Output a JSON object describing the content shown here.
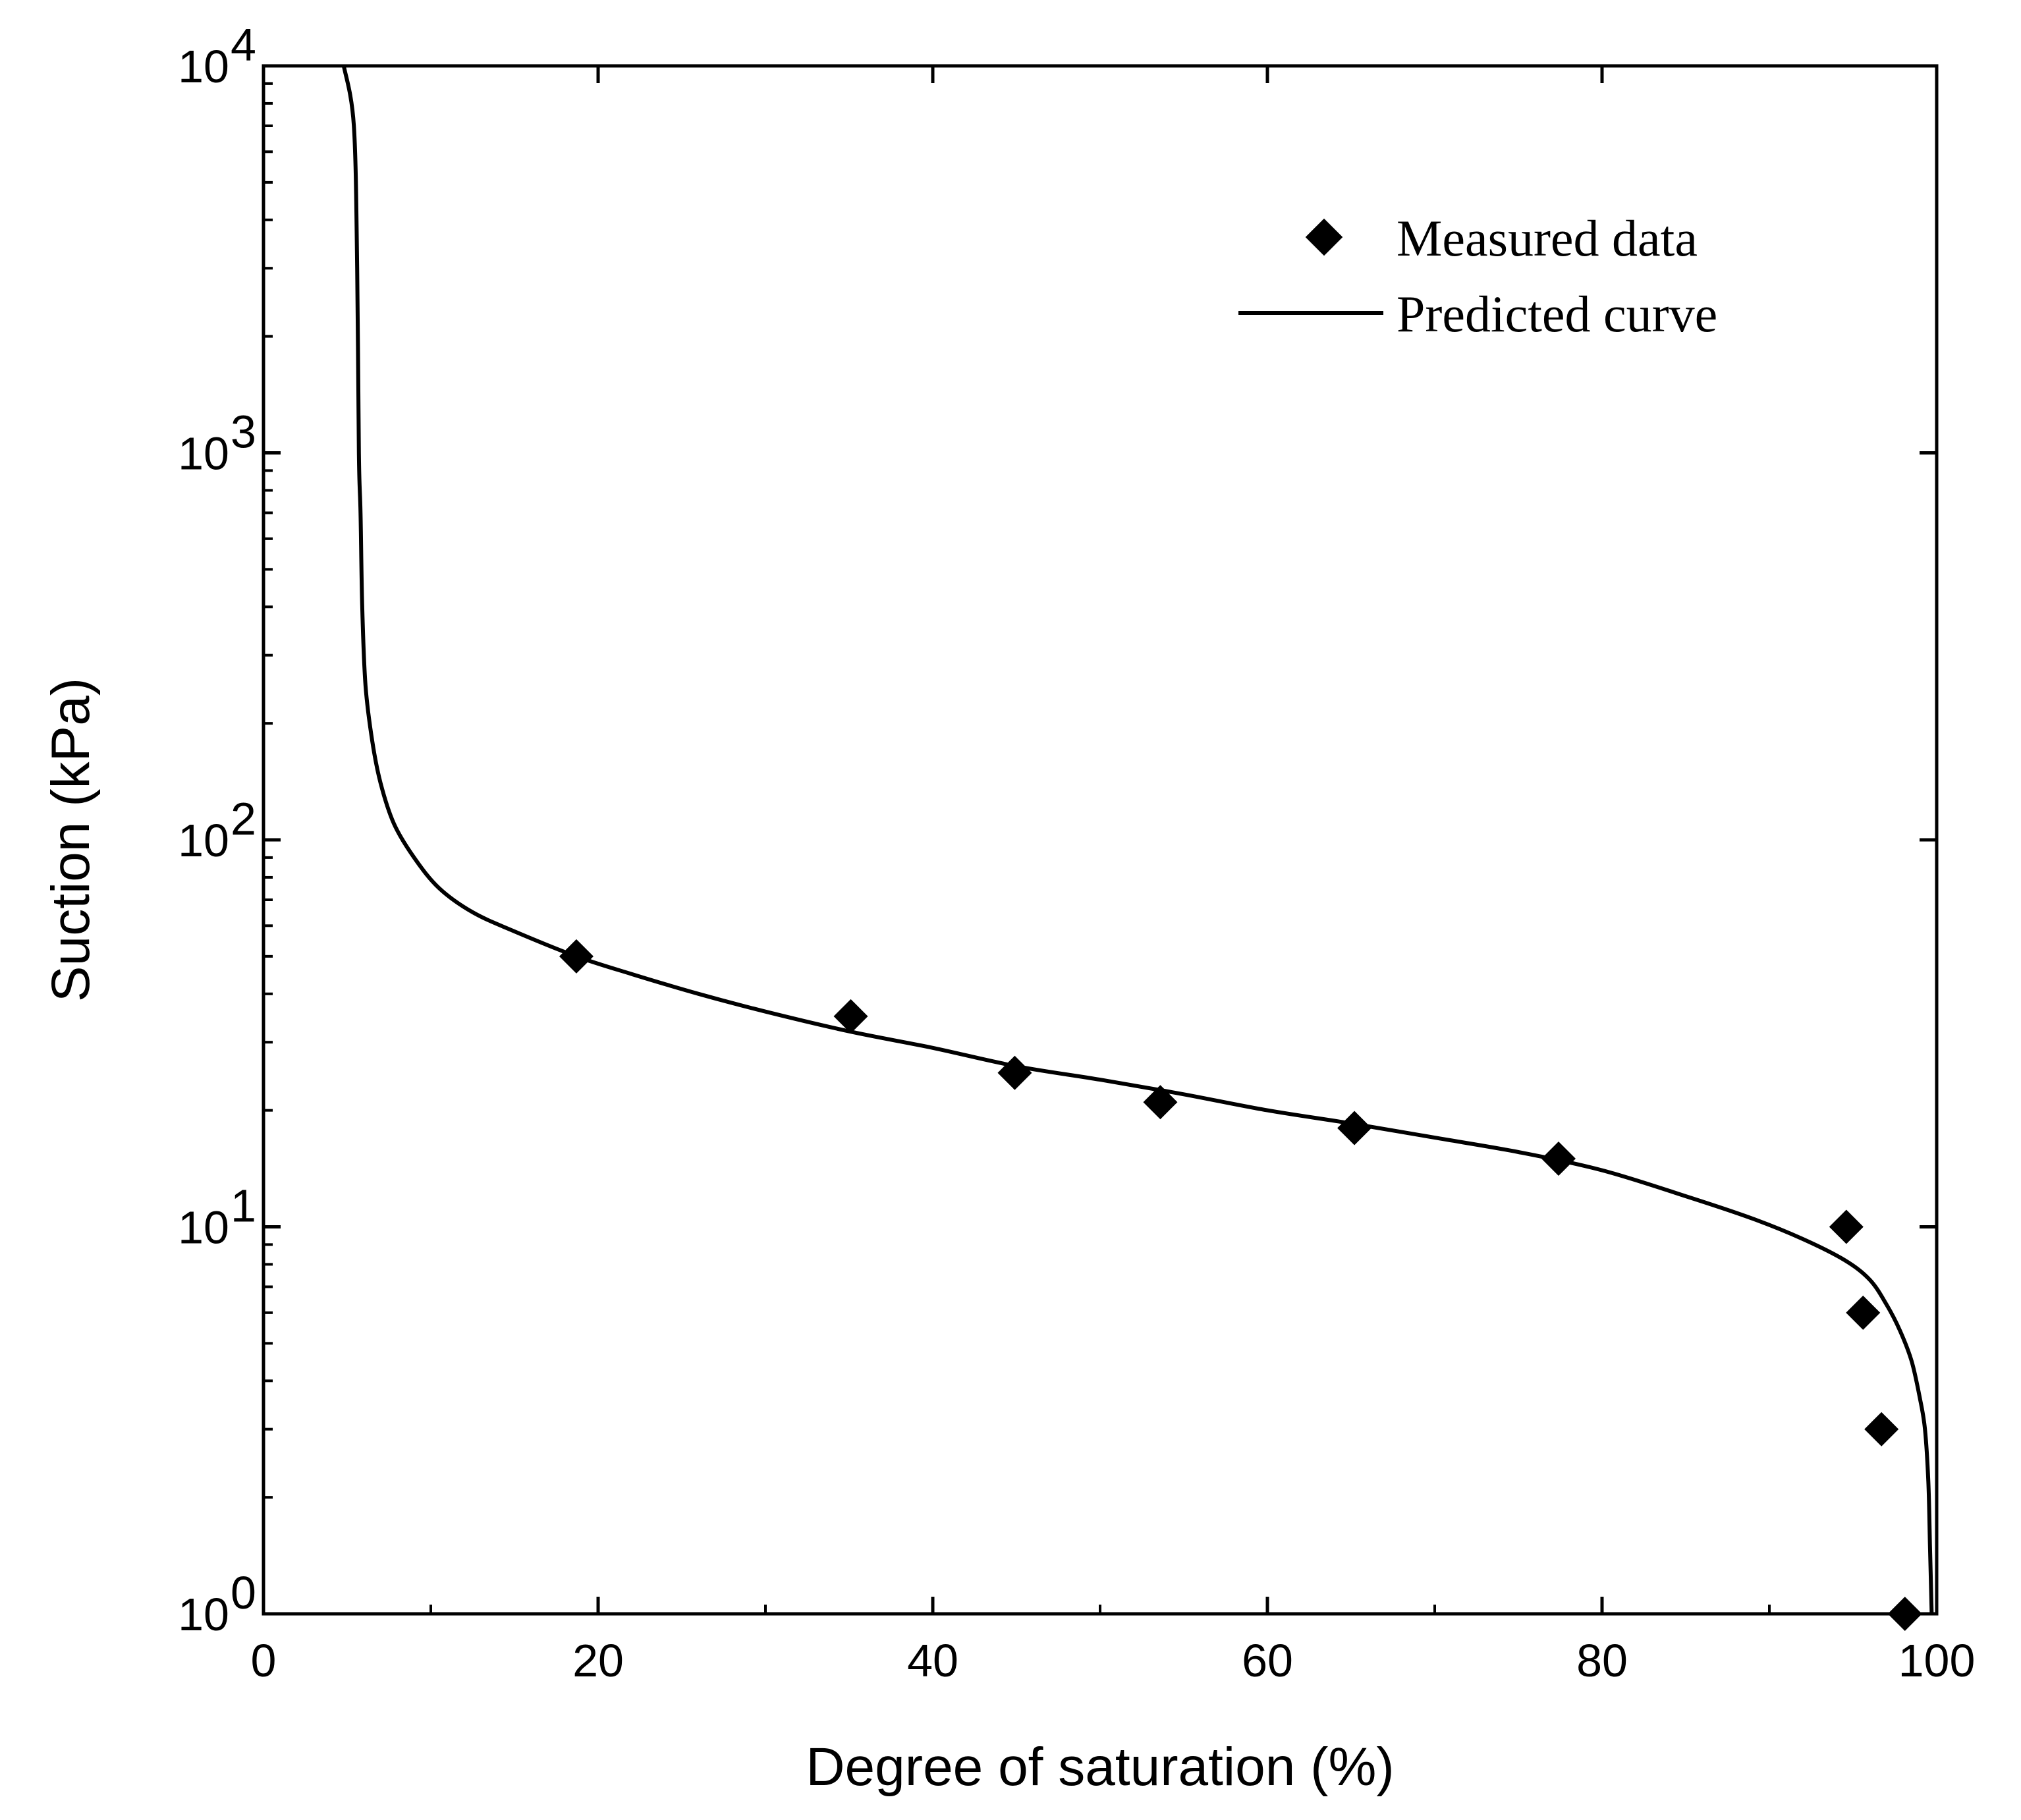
{
  "chart_data": {
    "type": "scatter",
    "title": "",
    "xlabel": "Degree of saturation (%)",
    "ylabel": "Suction (kPa)",
    "xlim": [
      0,
      100
    ],
    "ylim": [
      1,
      10000
    ],
    "yscale": "log",
    "grid": false,
    "legend_position": "top-right",
    "x_ticks": [
      0,
      20,
      40,
      60,
      80,
      100
    ],
    "x_tick_labels": [
      "0",
      "20",
      "40",
      "60",
      "80",
      "100"
    ],
    "y_ticks": [
      1,
      10,
      100,
      1000,
      10000
    ],
    "y_tick_labels": [
      {
        "base": "10",
        "exp": "0"
      },
      {
        "base": "10",
        "exp": "1"
      },
      {
        "base": "10",
        "exp": "2"
      },
      {
        "base": "10",
        "exp": "3"
      },
      {
        "base": "10",
        "exp": "4"
      }
    ],
    "series": [
      {
        "name": "Measured data",
        "kind": "scatter",
        "marker": "diamond",
        "color": "#000000",
        "x": [
          18.7,
          35.1,
          44.9,
          53.6,
          65.2,
          77.4,
          94.6,
          95.6,
          96.7,
          98.1
        ],
        "y": [
          50,
          35,
          25,
          21,
          18,
          15,
          10,
          6,
          3,
          1
        ]
      },
      {
        "name": "Predicted curve",
        "kind": "line",
        "color": "#000000",
        "x": [
          4.8,
          5.4,
          5.6,
          5.7,
          5.8,
          5.9,
          6.1,
          6.5,
          7.0,
          7.8,
          9.0,
          10.5,
          12.5,
          15.0,
          18.7,
          22.0,
          26.0,
          30.0,
          35.0,
          40.0,
          45.0,
          50.0,
          55.0,
          60.0,
          65.0,
          70.0,
          75.0,
          80.0,
          85.0,
          89.0,
          92.0,
          94.5,
          96.0,
          97.0,
          97.8,
          98.5,
          99.0,
          99.3,
          99.5,
          99.6,
          99.7
        ],
        "y": [
          10000,
          7000,
          3000,
          1000,
          700,
          400,
          250,
          180,
          140,
          110,
          90,
          75,
          65,
          58,
          50,
          45,
          40,
          36,
          32,
          29,
          26,
          24,
          22,
          20,
          18.5,
          17,
          15.6,
          14,
          12,
          10.5,
          9.3,
          8.2,
          7.3,
          6.3,
          5.4,
          4.5,
          3.6,
          3.0,
          2.2,
          1.5,
          1.0
        ]
      }
    ]
  }
}
